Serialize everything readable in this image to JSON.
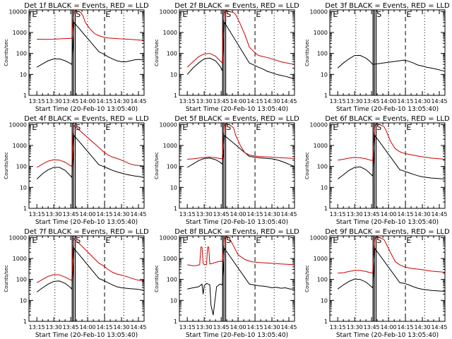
{
  "chart_data": [
    {
      "type": "line",
      "title": "Det 1f BLACK = Events, RED = LLD",
      "xlabel": "Start Time (20-Feb-10 13:05:40)",
      "ylabel": "Counts/sec",
      "x_ticks": [
        "13:15",
        "13:30",
        "13:45",
        "14:00",
        "14:15",
        "14:30",
        "14:45"
      ],
      "y_ticks": [
        "1",
        "10",
        "100",
        "1000",
        "10000"
      ],
      "yscale": "log",
      "ylim": [
        1,
        12000
      ],
      "markers": [
        "E",
        "S",
        "E"
      ],
      "series": [
        {
          "color": "#000000",
          "x": [
            7,
            12,
            17,
            22,
            27,
            32,
            36,
            38,
            39,
            40,
            62,
            66,
            70,
            74,
            78,
            82,
            86,
            90,
            94,
            98,
            102
          ],
          "y": [
            22,
            32,
            45,
            55,
            55,
            45,
            35,
            30,
            300,
            3000,
            120,
            95,
            70,
            55,
            45,
            40,
            40,
            45,
            50,
            52,
            48
          ]
        },
        {
          "color": "#cc0000",
          "x": [
            7,
            15,
            22,
            30,
            36,
            38,
            39,
            40,
            41,
            42,
            44,
            46,
            48,
            50,
            54,
            58,
            62,
            66,
            70,
            80,
            90,
            102
          ],
          "y": [
            480,
            470,
            480,
            510,
            520,
            520,
            3000,
            9000,
            11000,
            10500,
            10000,
            9000,
            6000,
            3000,
            1500,
            900,
            700,
            600,
            550,
            500,
            470,
            420
          ]
        }
      ]
    },
    {
      "type": "line",
      "title": "Det 2f BLACK = Events, RED = LLD",
      "xlabel": "Start Time (20-Feb-10 13:05:40)",
      "ylabel": "Counts/sec",
      "x_ticks": [
        "13:15",
        "13:30",
        "13:45",
        "14:00",
        "14:15",
        "14:30",
        "14:45"
      ],
      "y_ticks": [
        "1",
        "10",
        "100",
        "1000",
        "10000"
      ],
      "yscale": "log",
      "ylim": [
        1,
        12000
      ],
      "markers": [
        "E",
        "S",
        "E"
      ],
      "series": [
        {
          "color": "#000000",
          "x": [
            7,
            12,
            17,
            22,
            27,
            32,
            36,
            38,
            39,
            40,
            62,
            66,
            70,
            74,
            78,
            82,
            86,
            90,
            94,
            98,
            102
          ],
          "y": [
            10,
            20,
            35,
            55,
            60,
            45,
            25,
            15,
            300,
            3000,
            35,
            28,
            22,
            18,
            14,
            12,
            10,
            9,
            8,
            7,
            6
          ]
        },
        {
          "color": "#cc0000",
          "x": [
            7,
            12,
            17,
            22,
            27,
            32,
            36,
            38,
            39,
            40,
            41,
            44,
            48,
            50,
            54,
            58,
            62,
            66,
            70,
            80,
            90,
            102
          ],
          "y": [
            22,
            40,
            70,
            95,
            100,
            75,
            45,
            35,
            3000,
            9000,
            11000,
            10000,
            9000,
            7000,
            2500,
            800,
            200,
            120,
            80,
            60,
            40,
            30
          ]
        }
      ]
    },
    {
      "type": "line",
      "title": "Det 3f BLACK = Events, RED = LLD",
      "xlabel": "Start Time (20-Feb-10 13:05:40)",
      "ylabel": "Counts/sec",
      "x_ticks": [
        "13:15",
        "13:30",
        "13:45",
        "14:00",
        "14:15",
        "14:30",
        "14:45"
      ],
      "y_ticks": [
        "1",
        "10",
        "100",
        "1000",
        "10000"
      ],
      "yscale": "log",
      "ylim": [
        1,
        12000
      ],
      "markers": [
        "E",
        "S",
        "E"
      ],
      "series": [
        {
          "color": "#000000",
          "x": [
            7,
            12,
            17,
            22,
            27,
            32,
            36,
            38,
            62,
            66,
            70,
            74,
            78,
            82,
            86,
            90,
            94,
            98,
            102
          ],
          "y": [
            20,
            35,
            55,
            80,
            80,
            60,
            40,
            30,
            45,
            48,
            42,
            35,
            28,
            25,
            22,
            20,
            18,
            16,
            14
          ]
        }
      ]
    },
    {
      "type": "line",
      "title": "Det 4f BLACK = Events, RED = LLD",
      "xlabel": "Start Time (20-Feb-10 13:05:40)",
      "ylabel": "Counts/sec",
      "x_ticks": [
        "13:15",
        "13:30",
        "13:45",
        "14:00",
        "14:15",
        "14:30",
        "14:45"
      ],
      "y_ticks": [
        "1",
        "10",
        "100",
        "1000",
        "10000"
      ],
      "yscale": "log",
      "ylim": [
        1,
        12000
      ],
      "markers": [
        "E",
        "S",
        "E"
      ],
      "series": [
        {
          "color": "#000000",
          "x": [
            7,
            12,
            17,
            22,
            27,
            32,
            36,
            38,
            39,
            40,
            62,
            66,
            70,
            74,
            78,
            82,
            86,
            90,
            94,
            98,
            102
          ],
          "y": [
            25,
            45,
            70,
            90,
            90,
            65,
            40,
            30,
            300,
            3000,
            120,
            100,
            80,
            65,
            55,
            48,
            42,
            38,
            35,
            33,
            30
          ]
        },
        {
          "color": "#cc0000",
          "x": [
            7,
            12,
            17,
            22,
            27,
            32,
            36,
            38,
            39,
            40,
            62,
            66,
            70,
            74,
            78,
            82,
            86,
            90,
            94,
            98,
            102
          ],
          "y": [
            90,
            130,
            180,
            210,
            200,
            160,
            115,
            100,
            3000,
            9000,
            800,
            500,
            350,
            280,
            240,
            200,
            160,
            130,
            115,
            110,
            105
          ]
        }
      ]
    },
    {
      "type": "line",
      "title": "Det 5f BLACK = Events, RED = LLD",
      "xlabel": "Start Time (20-Feb-10 13:05:40)",
      "ylabel": "Counts/sec",
      "x_ticks": [
        "13:15",
        "13:30",
        "13:45",
        "14:00",
        "14:15",
        "14:30",
        "14:45"
      ],
      "y_ticks": [
        "1",
        "10",
        "100",
        "1000",
        "10000"
      ],
      "yscale": "log",
      "ylim": [
        1,
        12000
      ],
      "markers": [
        "E",
        "S",
        "E"
      ],
      "series": [
        {
          "color": "#000000",
          "x": [
            7,
            12,
            17,
            22,
            27,
            32,
            36,
            38,
            39,
            40,
            62,
            66,
            70,
            74,
            78,
            82,
            86,
            90,
            94,
            98,
            102
          ],
          "y": [
            90,
            130,
            190,
            240,
            250,
            210,
            160,
            130,
            400,
            3000,
            300,
            280,
            260,
            250,
            240,
            230,
            210,
            180,
            150,
            120,
            100
          ]
        },
        {
          "color": "#cc0000",
          "x": [
            7,
            12,
            17,
            22,
            27,
            32,
            36,
            38,
            39,
            40,
            41,
            44,
            48,
            50,
            54,
            58,
            62,
            66,
            70,
            80,
            90,
            102
          ],
          "y": [
            220,
            230,
            250,
            270,
            280,
            260,
            240,
            230,
            3000,
            9000,
            11000,
            10000,
            7000,
            3000,
            1000,
            450,
            350,
            320,
            300,
            280,
            260,
            240
          ]
        }
      ]
    },
    {
      "type": "line",
      "title": "Det 6f BLACK = Events, RED = LLD",
      "xlabel": "Start Time (20-Feb-10 13:05:40)",
      "ylabel": "Counts/sec",
      "x_ticks": [
        "13:15",
        "13:30",
        "13:45",
        "14:00",
        "14:15",
        "14:30",
        "14:45"
      ],
      "y_ticks": [
        "1",
        "10",
        "100",
        "1000",
        "10000"
      ],
      "yscale": "log",
      "ylim": [
        1,
        12000
      ],
      "markers": [
        "E",
        "S",
        "E"
      ],
      "series": [
        {
          "color": "#000000",
          "x": [
            7,
            12,
            17,
            22,
            27,
            32,
            36,
            38,
            39,
            40,
            62,
            66,
            70,
            74,
            78,
            82,
            86,
            90,
            94,
            98,
            102
          ],
          "y": [
            25,
            40,
            65,
            90,
            95,
            70,
            45,
            35,
            300,
            3000,
            70,
            60,
            50,
            42,
            36,
            32,
            30,
            28,
            27,
            26,
            25
          ]
        },
        {
          "color": "#cc0000",
          "x": [
            7,
            12,
            17,
            22,
            27,
            32,
            36,
            38,
            39,
            40,
            41,
            44,
            48,
            50,
            54,
            58,
            62,
            66,
            70,
            80,
            90,
            102
          ],
          "y": [
            200,
            220,
            250,
            270,
            260,
            230,
            200,
            190,
            3000,
            9000,
            11000,
            10000,
            8000,
            5000,
            1500,
            700,
            500,
            420,
            380,
            300,
            250,
            220
          ]
        }
      ]
    },
    {
      "type": "line",
      "title": "Det 7f BLACK = Events, RED = LLD",
      "xlabel": "Start Time (20-Feb-10 13:05:40)",
      "ylabel": "Counts/sec",
      "x_ticks": [
        "13:15",
        "13:30",
        "13:45",
        "14:00",
        "14:15",
        "14:30",
        "14:45"
      ],
      "y_ticks": [
        "1",
        "10",
        "100",
        "1000",
        "10000"
      ],
      "yscale": "log",
      "ylim": [
        1,
        12000
      ],
      "markers": [
        "E",
        "S",
        "E"
      ],
      "series": [
        {
          "color": "#000000",
          "x": [
            7,
            12,
            17,
            22,
            27,
            32,
            36,
            38,
            39,
            40,
            62,
            66,
            70,
            74,
            78,
            82,
            86,
            90,
            94,
            98,
            102
          ],
          "y": [
            25,
            40,
            60,
            80,
            85,
            65,
            45,
            35,
            300,
            3000,
            110,
            90,
            70,
            55,
            45,
            40,
            38,
            36,
            35,
            33,
            30
          ]
        },
        {
          "color": "#cc0000",
          "x": [
            7,
            12,
            17,
            22,
            27,
            32,
            36,
            38,
            39,
            40,
            62,
            66,
            70,
            74,
            78,
            82,
            86,
            90,
            94,
            98,
            102
          ],
          "y": [
            70,
            100,
            140,
            170,
            165,
            130,
            100,
            90,
            3000,
            9000,
            600,
            450,
            300,
            220,
            180,
            160,
            140,
            120,
            100,
            90,
            85
          ]
        }
      ]
    },
    {
      "type": "line",
      "title": "Det 8f BLACK = Events, RED = LLD",
      "xlabel": "Start Time (20-Feb-10 13:05:40)",
      "ylabel": "Counts/sec",
      "x_ticks": [
        "13:15",
        "13:30",
        "13:45",
        "14:00",
        "14:15",
        "14:30",
        "14:45"
      ],
      "y_ticks": [
        "1",
        "10",
        "100",
        "1000",
        "10000"
      ],
      "yscale": "log",
      "ylim": [
        1,
        12000
      ],
      "markers": [
        "E",
        "S",
        "E"
      ],
      "series": [
        {
          "color": "#000000",
          "x": [
            7,
            12,
            17,
            20,
            21,
            22,
            24,
            27,
            28,
            30,
            33,
            36,
            38,
            39,
            40,
            62,
            66,
            70,
            74,
            78,
            82,
            86,
            90,
            94,
            98,
            102
          ],
          "y": [
            35,
            40,
            45,
            60,
            20,
            50,
            65,
            55,
            6,
            2,
            45,
            60,
            55,
            400,
            3000,
            60,
            55,
            50,
            48,
            45,
            40,
            42,
            38,
            40,
            35,
            35
          ]
        },
        {
          "color": "#cc0000",
          "x": [
            7,
            12,
            15,
            18,
            19,
            20,
            21,
            22,
            24,
            25,
            26,
            27,
            30,
            34,
            37,
            38,
            39,
            40,
            41,
            44,
            48,
            52,
            58,
            64,
            70,
            80,
            90,
            102
          ],
          "y": [
            500,
            450,
            460,
            500,
            3500,
            3500,
            600,
            500,
            520,
            3500,
            3500,
            550,
            600,
            700,
            750,
            700,
            3000,
            9000,
            11000,
            10000,
            4000,
            1500,
            900,
            700,
            650,
            600,
            550,
            500
          ]
        }
      ]
    },
    {
      "type": "line",
      "title": "Det 9f BLACK = Events, RED = LLD",
      "xlabel": "Start Time (20-Feb-10 13:05:40)",
      "ylabel": "Counts/sec",
      "x_ticks": [
        "13:15",
        "13:30",
        "13:45",
        "14:00",
        "14:15",
        "14:30",
        "14:45"
      ],
      "y_ticks": [
        "1",
        "10",
        "100",
        "1000",
        "10000"
      ],
      "yscale": "log",
      "ylim": [
        1,
        12000
      ],
      "markers": [
        "E",
        "S",
        "E"
      ],
      "series": [
        {
          "color": "#000000",
          "x": [
            7,
            12,
            17,
            22,
            27,
            32,
            36,
            38,
            39,
            40,
            62,
            66,
            70,
            74,
            78,
            82,
            86,
            90,
            94,
            98,
            102
          ],
          "y": [
            35,
            55,
            80,
            105,
            100,
            75,
            50,
            40,
            300,
            3000,
            70,
            65,
            55,
            45,
            38,
            34,
            32,
            30,
            29,
            28,
            27
          ]
        },
        {
          "color": "#cc0000",
          "x": [
            7,
            12,
            17,
            22,
            27,
            32,
            36,
            38,
            39,
            40,
            41,
            44,
            48,
            50,
            54,
            58,
            62,
            66,
            70,
            80,
            90,
            102
          ],
          "y": [
            200,
            210,
            240,
            270,
            270,
            240,
            210,
            200,
            3000,
            9000,
            11000,
            10000,
            8000,
            5000,
            1800,
            700,
            500,
            400,
            350,
            300,
            250,
            220
          ]
        }
      ]
    }
  ]
}
